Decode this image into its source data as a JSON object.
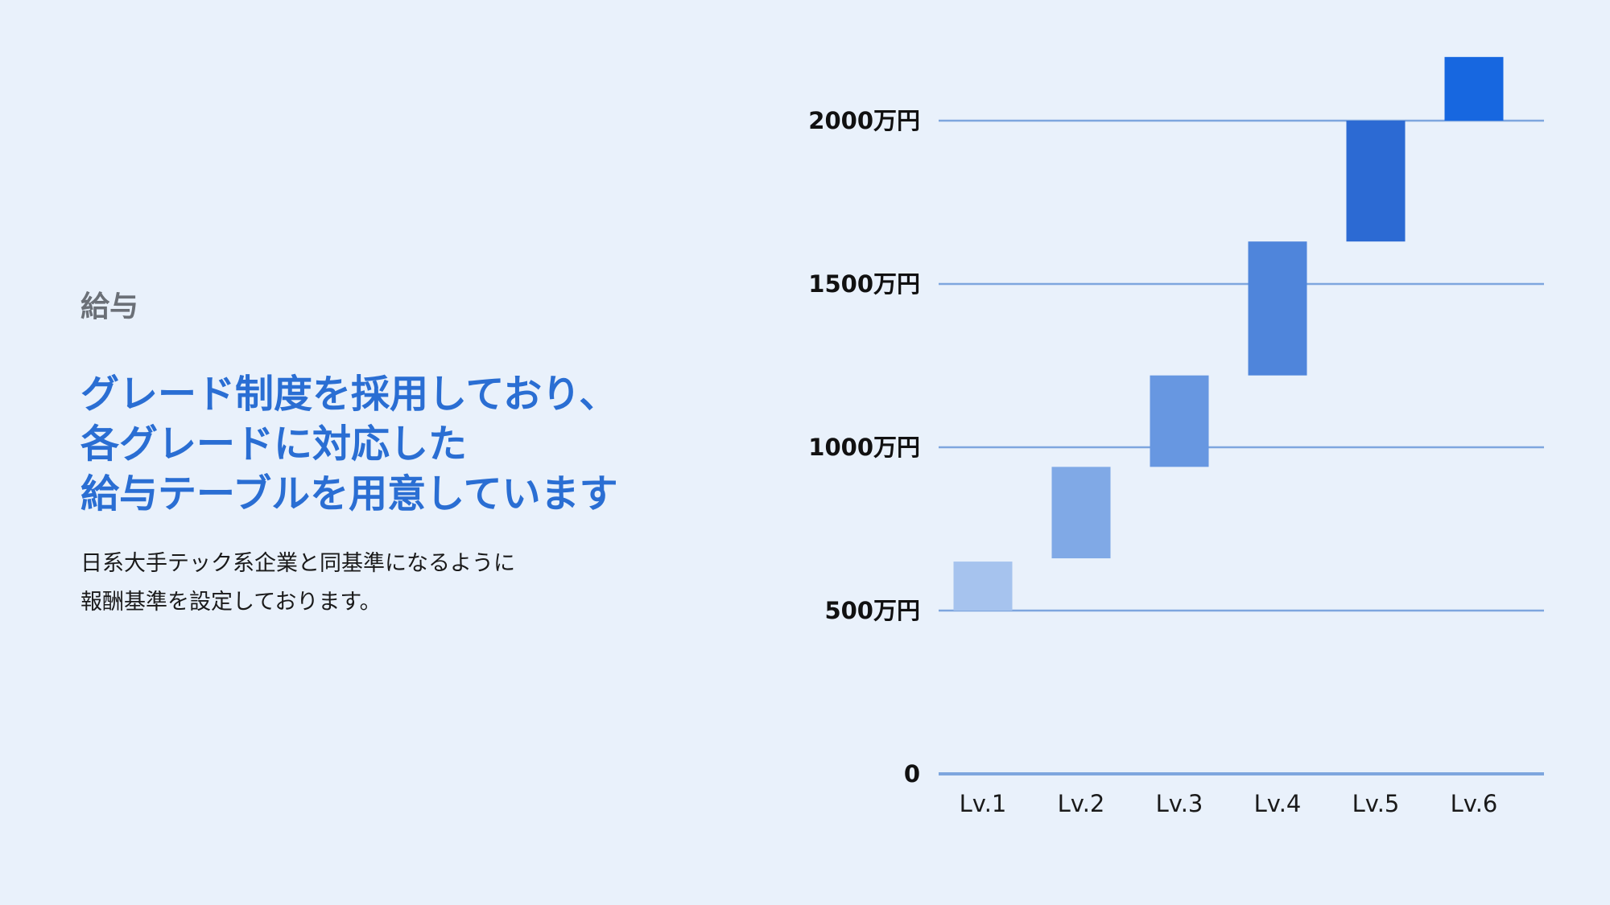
{
  "section_label": "給与",
  "headline": [
    "グレード制度を採用しており、",
    "各グレードに対応した",
    "給与テーブルを用意しています"
  ],
  "description": [
    "日系大手テック系企業と同基準になるように",
    "報酬基準を設定しております。"
  ],
  "chart_data": {
    "type": "bar",
    "subtype": "floating-range",
    "categories": [
      "Lv.1",
      "Lv.2",
      "Lv.3",
      "Lv.4",
      "Lv.5",
      "Lv.6"
    ],
    "ranges": [
      {
        "low": 500,
        "high": 650
      },
      {
        "low": 660,
        "high": 940
      },
      {
        "low": 940,
        "high": 1220
      },
      {
        "low": 1220,
        "high": 1630
      },
      {
        "low": 1630,
        "high": 2000
      },
      {
        "low": 2000,
        "high": 2195
      }
    ],
    "ylim": [
      0,
      2000
    ],
    "yticks": [
      0,
      500,
      1000,
      1500,
      2000
    ],
    "ytick_labels": [
      "0",
      "500万円",
      "1000万円",
      "1500万円",
      "2000万円"
    ],
    "grid": true,
    "colors": [
      "#a6c3ee",
      "#80a9e6",
      "#6797e1",
      "#4f85db",
      "#2c6ad3",
      "#1767e0"
    ],
    "gridline_color": "#7ea6de"
  }
}
